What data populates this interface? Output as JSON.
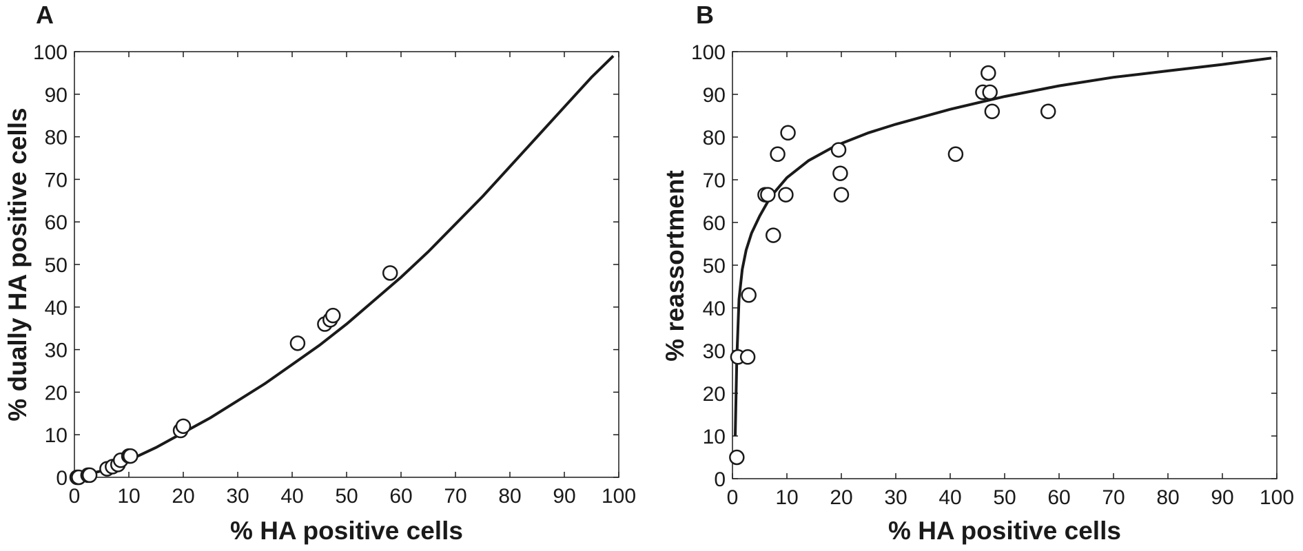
{
  "chart_data": [
    {
      "type": "scatter",
      "panel_label": "A",
      "xlabel": "% HA positive cells",
      "ylabel": "% dually HA positive cells",
      "xlim": [
        0,
        100
      ],
      "ylim": [
        0,
        100
      ],
      "xticks": [
        "0",
        "10",
        "20",
        "30",
        "40",
        "50",
        "60",
        "70",
        "80",
        "90",
        "100"
      ],
      "yticks": [
        "0",
        "10",
        "20",
        "30",
        "40",
        "50",
        "60",
        "70",
        "80",
        "90",
        "100"
      ],
      "grid": false,
      "series": [
        {
          "type": "scatter",
          "marker": "open-circle",
          "x": [
            0.5,
            0.8,
            2.5,
            2.8,
            6,
            7,
            8,
            8.5,
            10,
            10.3,
            19.5,
            20,
            41,
            46,
            47,
            47.5,
            58
          ],
          "y": [
            0,
            0,
            0.5,
            0.5,
            2,
            2.5,
            3,
            4,
            5,
            5,
            11,
            12,
            31.5,
            36,
            37,
            38,
            48
          ]
        },
        {
          "type": "line",
          "x": [
            0,
            5,
            10,
            15,
            20,
            25,
            30,
            35,
            40,
            45,
            50,
            55,
            60,
            65,
            70,
            75,
            80,
            85,
            90,
            95,
            99
          ],
          "y": [
            0,
            1.5,
            4,
            7,
            10.5,
            14,
            18,
            22,
            26.5,
            31,
            36,
            41.5,
            47,
            53,
            59.5,
            66,
            73,
            80,
            87,
            94,
            99
          ]
        }
      ]
    },
    {
      "type": "scatter",
      "panel_label": "B",
      "xlabel": "% HA positive cells",
      "ylabel": "% reassortment",
      "xlim": [
        0,
        100
      ],
      "ylim": [
        0,
        100
      ],
      "xticks": [
        "0",
        "10",
        "20",
        "30",
        "40",
        "50",
        "60",
        "70",
        "80",
        "90",
        "100"
      ],
      "yticks": [
        "0",
        "10",
        "20",
        "30",
        "40",
        "50",
        "60",
        "70",
        "80",
        "90",
        "100"
      ],
      "grid": false,
      "series": [
        {
          "type": "scatter",
          "marker": "open-circle",
          "x": [
            0.8,
            1,
            2.8,
            3,
            6,
            6.5,
            7.5,
            8.3,
            9.8,
            10.2,
            19.5,
            19.8,
            20,
            41,
            46,
            47,
            47.3,
            47.7,
            58
          ],
          "y": [
            5,
            28.5,
            28.5,
            43,
            66.5,
            66.5,
            57,
            76,
            66.5,
            81,
            77,
            71.5,
            66.5,
            76,
            90.5,
            95,
            90.5,
            86,
            86
          ]
        },
        {
          "type": "line",
          "x": [
            0.5,
            0.8,
            1.2,
            1.8,
            2.5,
            3.5,
            5,
            7,
            10,
            14,
            19,
            25,
            30,
            40,
            50,
            60,
            70,
            80,
            90,
            99
          ],
          "y": [
            10,
            28,
            42,
            49,
            53.5,
            57.5,
            61.5,
            66,
            70.5,
            74.5,
            78,
            81,
            83,
            86.5,
            89.5,
            92,
            94,
            95.5,
            97,
            98.5
          ]
        }
      ]
    }
  ]
}
